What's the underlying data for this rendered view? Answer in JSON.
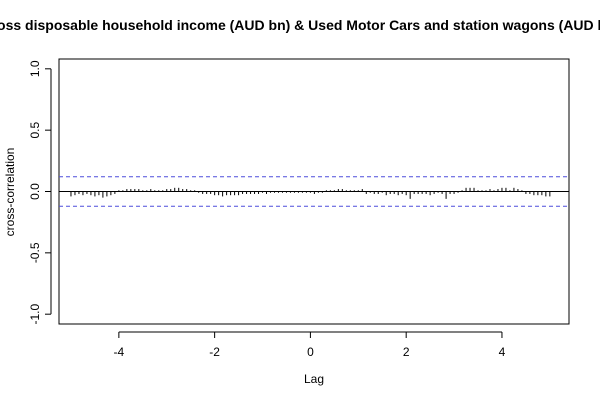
{
  "chart_data": {
    "type": "bar",
    "title": "Gross disposable household income (AUD bn) & Used Motor Cars and station wagons (AUD bn)",
    "xlabel": "Lag",
    "ylabel": "cross-correlation",
    "xlim": [
      -5.25,
      5.4
    ],
    "ylim": [
      -1.08,
      1.08
    ],
    "x_ticks": [
      -4,
      -2,
      0,
      2,
      4
    ],
    "x_tick_labels": [
      "-4",
      "-2",
      "0",
      "2",
      "4"
    ],
    "y_ticks": [
      -1.0,
      -0.5,
      0.0,
      0.5,
      1.0
    ],
    "y_tick_labels": [
      "-1.0",
      "-0.5",
      "0.0",
      "0.5",
      "1.0"
    ],
    "confidence_bounds": [
      0.12,
      -0.12
    ],
    "lag_step": 0.0833333,
    "lag_start": -5,
    "values": [
      -0.04,
      -0.03,
      -0.02,
      -0.03,
      -0.02,
      -0.03,
      -0.04,
      -0.03,
      -0.05,
      -0.04,
      -0.03,
      -0.02,
      0.01,
      0.01,
      0.02,
      0.02,
      0.02,
      0.02,
      0.01,
      0.01,
      0.02,
      0.01,
      0.01,
      0.01,
      0.02,
      0.02,
      0.03,
      0.03,
      0.02,
      0.02,
      0.01,
      0.01,
      -0.01,
      -0.02,
      -0.02,
      -0.02,
      -0.03,
      -0.03,
      -0.04,
      -0.03,
      -0.03,
      -0.03,
      -0.03,
      -0.02,
      -0.02,
      -0.02,
      -0.02,
      -0.02,
      -0.01,
      -0.02,
      -0.01,
      -0.01,
      -0.01,
      -0.01,
      -0.01,
      -0.01,
      -0.01,
      -0.01,
      -0.01,
      -0.01,
      -0.01,
      -0.02,
      -0.01,
      -0.01,
      0.01,
      0.01,
      0.01,
      0.02,
      0.02,
      0.01,
      0.01,
      0.01,
      0.01,
      0.02,
      -0.02,
      -0.01,
      -0.02,
      -0.02,
      -0.01,
      -0.03,
      -0.02,
      -0.02,
      -0.03,
      -0.02,
      -0.03,
      -0.06,
      -0.02,
      -0.02,
      -0.02,
      -0.02,
      -0.03,
      -0.02,
      -0.01,
      -0.02,
      -0.06,
      -0.02,
      -0.02,
      -0.01,
      0.01,
      0.03,
      0.03,
      0.03,
      0.01,
      0.01,
      0.01,
      0.02,
      0.01,
      0.02,
      0.03,
      0.03,
      0.01,
      0.03,
      0.02,
      0.01,
      -0.02,
      -0.02,
      -0.03,
      -0.03,
      -0.03,
      -0.04,
      -0.04
    ]
  }
}
